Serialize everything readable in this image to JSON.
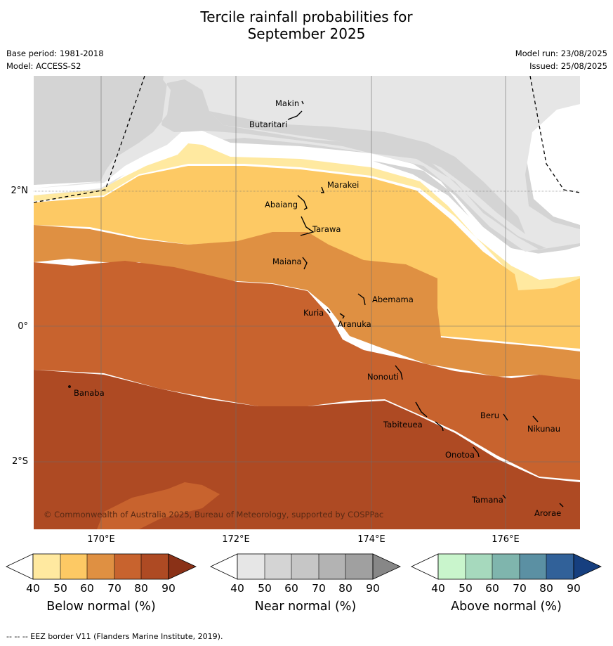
{
  "title_line1": "Tercile rainfall probabilities for",
  "title_line2": "September 2025",
  "meta_left": [
    "Base period: 1981-2018",
    "Model: ACCESS-S2"
  ],
  "meta_right": [
    "Model run: 23/08/2025",
    "Issued: 25/08/2025"
  ],
  "lat_labels": [
    "2°N",
    "0°",
    "2°S"
  ],
  "lon_labels": [
    "170°E",
    "172°E",
    "174°E",
    "176°E"
  ],
  "islands": [
    {
      "name": "Makin"
    },
    {
      "name": "Butaritari"
    },
    {
      "name": "Marakei"
    },
    {
      "name": "Abaiang"
    },
    {
      "name": "Tarawa"
    },
    {
      "name": "Maiana"
    },
    {
      "name": "Abemama"
    },
    {
      "name": "Kuria"
    },
    {
      "name": "Aranuka"
    },
    {
      "name": "Nonouti"
    },
    {
      "name": "Banaba"
    },
    {
      "name": "Beru"
    },
    {
      "name": "Nikunau"
    },
    {
      "name": "Tabiteuea"
    },
    {
      "name": "Onotoa"
    },
    {
      "name": "Tamana"
    },
    {
      "name": "Arorae"
    }
  ],
  "copyright": "© Commonwealth of Australia 2025, Bureau of Meteorology, supported by COSPPac",
  "colorbars": [
    {
      "name": "Below normal (%)",
      "ticks": [
        "40",
        "50",
        "60",
        "70",
        "80",
        "90"
      ],
      "colors": [
        "#ffffff",
        "#ffe9a0",
        "#fdc964",
        "#df9042",
        "#c8632e",
        "#ae4a23",
        "#8a3117"
      ]
    },
    {
      "name": "Near normal (%)",
      "ticks": [
        "40",
        "50",
        "60",
        "70",
        "80",
        "90"
      ],
      "colors": [
        "#ffffff",
        "#e6e6e6",
        "#d4d4d4",
        "#c6c6c6",
        "#b3b3b3",
        "#a0a0a0",
        "#878787"
      ]
    },
    {
      "name": "Above normal (%)",
      "ticks": [
        "40",
        "50",
        "60",
        "70",
        "80",
        "90"
      ],
      "colors": [
        "#ffffff",
        "#c9f5cc",
        "#a6d9bd",
        "#7fb5ad",
        "#5b90a3",
        "#316199",
        "#163f7f"
      ]
    }
  ],
  "footer": "--  --  -- EEZ border V11 (Flanders Marine Institute, 2019)."
}
